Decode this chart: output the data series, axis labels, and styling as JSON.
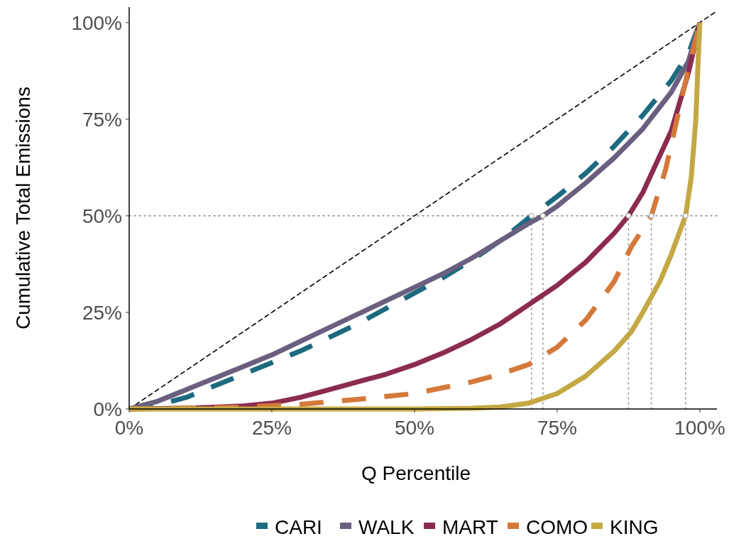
{
  "chart_data": {
    "type": "line",
    "xlabel": "Q Percentile",
    "ylabel": "Cumulative Total Emissions",
    "xlim": [
      0,
      103
    ],
    "ylim": [
      0,
      104
    ],
    "xticks": [
      {
        "value": 0,
        "label": "0%"
      },
      {
        "value": 25,
        "label": "25%"
      },
      {
        "value": 50,
        "label": "50%"
      },
      {
        "value": 75,
        "label": "75%"
      },
      {
        "value": 100,
        "label": "100%"
      }
    ],
    "yticks": [
      {
        "value": 0,
        "label": "0%"
      },
      {
        "value": 25,
        "label": "25%"
      },
      {
        "value": 50,
        "label": "50%"
      },
      {
        "value": 75,
        "label": "75%"
      },
      {
        "value": 100,
        "label": "100%"
      }
    ],
    "grid": false,
    "legend": "bottom",
    "ref_lines": [
      {
        "axis": "y",
        "value": 50,
        "color": "#999999",
        "line_style": "dotted"
      }
    ],
    "series": [
      {
        "type": "line",
        "color": "#000000",
        "line_style": "dashed",
        "x": [
          0,
          103
        ],
        "values": [
          0,
          103
        ]
      },
      {
        "type": "line",
        "color": "#999999",
        "line_style": "dotted",
        "x": [
          70.5,
          70.5
        ],
        "values": [
          0,
          50
        ]
      },
      {
        "type": "line",
        "color": "#999999",
        "line_style": "dotted",
        "x": [
          72.5,
          72.5
        ],
        "values": [
          0,
          50
        ]
      },
      {
        "type": "line",
        "color": "#999999",
        "line_style": "dotted",
        "x": [
          87.5,
          87.5
        ],
        "values": [
          0,
          50
        ]
      },
      {
        "type": "line",
        "color": "#999999",
        "line_style": "dotted",
        "x": [
          91.5,
          91.5
        ],
        "values": [
          0,
          50
        ]
      },
      {
        "type": "line",
        "color": "#999999",
        "line_style": "dotted",
        "x": [
          97.5,
          97.5
        ],
        "values": [
          0,
          50
        ]
      },
      {
        "name": "CARI",
        "color": "#1d6a80",
        "line_style": "dashed",
        "x": [
          0,
          5,
          10,
          15,
          20,
          25,
          30,
          35,
          40,
          45,
          50,
          55,
          60,
          65,
          70.5,
          75,
          80,
          85,
          90,
          95,
          98,
          100
        ],
        "values": [
          0,
          1,
          3,
          6,
          9,
          12,
          15,
          18.5,
          22,
          26,
          30,
          34,
          38.5,
          43.5,
          50,
          55,
          61,
          68,
          76,
          85,
          92,
          100
        ]
      },
      {
        "name": "WALK",
        "color": "#6b5f80",
        "line_style": "solid",
        "x": [
          0,
          5,
          10,
          15,
          20,
          25,
          30,
          35,
          40,
          45,
          50,
          55,
          60,
          65,
          70,
          72.5,
          75,
          80,
          85,
          90,
          95,
          98,
          100
        ],
        "values": [
          0,
          2,
          5,
          8,
          11,
          14,
          17.5,
          21,
          24.5,
          28,
          31.5,
          35,
          39,
          43.5,
          48,
          50,
          52.5,
          58.5,
          65,
          72.5,
          82,
          90,
          100
        ]
      },
      {
        "name": "MART",
        "color": "#8c2b50",
        "line_style": "solid",
        "x": [
          0,
          10,
          20,
          25,
          30,
          35,
          40,
          45,
          50,
          55,
          60,
          65,
          70,
          75,
          80,
          85,
          87.5,
          90,
          95,
          98,
          100
        ],
        "values": [
          0,
          0.2,
          0.8,
          1.5,
          3,
          5,
          7,
          9,
          11.5,
          14.5,
          18,
          22,
          27,
          32,
          38,
          45.5,
          50,
          56,
          72,
          87,
          100
        ]
      },
      {
        "name": "COMO",
        "color": "#d4793a",
        "line_style": "dashed",
        "x": [
          0,
          20,
          30,
          40,
          50,
          60,
          65,
          70,
          75,
          80,
          85,
          88,
          91.5,
          94,
          96,
          98,
          100
        ],
        "values": [
          0,
          0.5,
          1.2,
          2.5,
          4,
          7,
          9,
          11.5,
          16,
          23,
          33,
          42,
          50,
          62,
          75,
          88,
          100
        ]
      },
      {
        "name": "KING",
        "color": "#c4a844",
        "line_style": "solid",
        "x": [
          0,
          50,
          60,
          65,
          70,
          75,
          80,
          85,
          88,
          90,
          93,
          95,
          97.5,
          98.5,
          99.3,
          99.7,
          100
        ],
        "values": [
          0,
          0,
          0.2,
          0.5,
          1.5,
          4,
          8.5,
          15,
          20,
          25,
          33,
          40,
          50,
          60,
          75,
          90,
          100
        ]
      },
      {
        "type": "scatter",
        "color": "#ffffff",
        "marker": "circle",
        "x": [
          70.5,
          72.5,
          87.5,
          91.5,
          97.5
        ],
        "values": [
          50,
          50,
          50,
          50,
          50
        ]
      }
    ]
  }
}
